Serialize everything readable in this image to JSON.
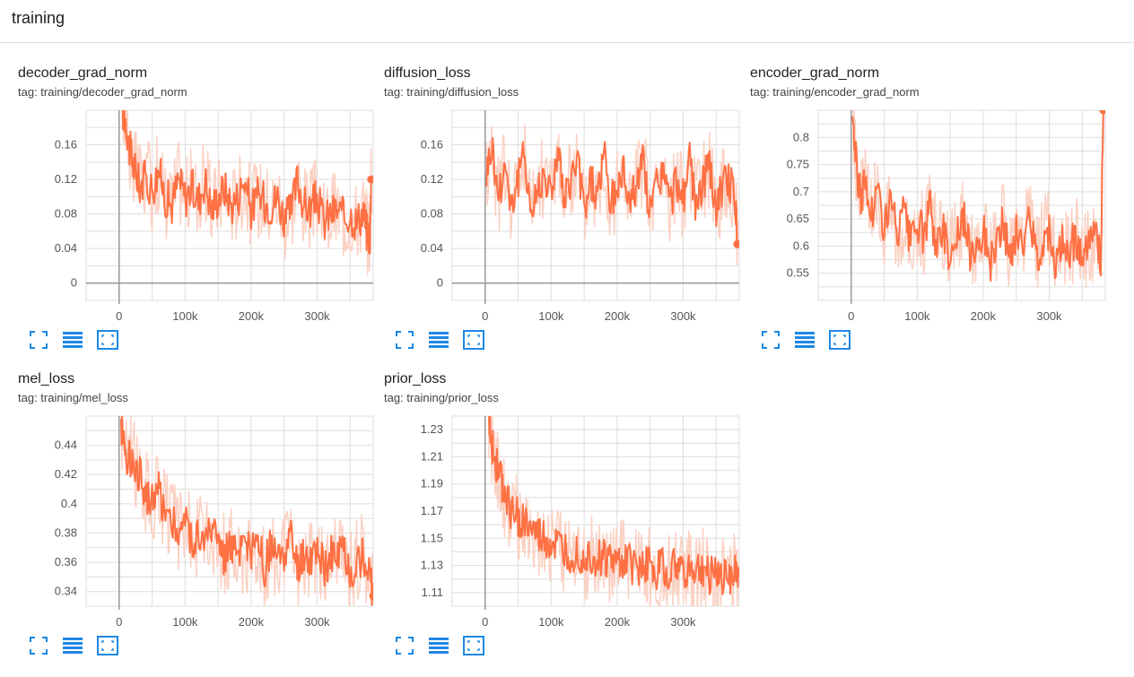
{
  "header": {
    "title": "training"
  },
  "colors": {
    "series": "#ff7043",
    "series_raw": "#fbd1c3",
    "grid": "#dddddd",
    "axis": "#999999",
    "icon": "#1e88e5"
  },
  "icons": [
    "fullscreen-icon",
    "data-table-icon",
    "fit-domain-icon"
  ],
  "chart_data": [
    {
      "type": "line",
      "title": "decoder_grad_norm",
      "tag": "tag: training/decoder_grad_norm",
      "xticks": [
        0,
        100000,
        200000,
        300000
      ],
      "xtick_labels": [
        "0",
        "100k",
        "200k",
        "300k"
      ],
      "yticks": [
        0,
        0.04,
        0.08,
        0.12,
        0.16
      ],
      "ytick_labels": [
        "0",
        "0.04",
        "0.08",
        "0.12",
        "0.16"
      ],
      "xlim": [
        -50000,
        385000
      ],
      "ylim": [
        -0.02,
        0.2
      ],
      "grid": true,
      "series": [
        {
          "x": [
            5000,
            10000,
            15000,
            20000,
            25000,
            30000,
            40000,
            50000,
            60000,
            70000,
            80000,
            90000,
            100000,
            110000,
            120000,
            130000,
            140000,
            150000,
            160000,
            170000,
            180000,
            190000,
            200000,
            210000,
            220000,
            230000,
            240000,
            250000,
            260000,
            270000,
            280000,
            290000,
            300000,
            310000,
            320000,
            330000,
            340000,
            350000,
            360000,
            370000,
            375000,
            380000,
            382000
          ],
          "y": [
            0.2,
            0.19,
            0.16,
            0.14,
            0.13,
            0.115,
            0.12,
            0.11,
            0.13,
            0.1,
            0.09,
            0.12,
            0.1,
            0.11,
            0.095,
            0.12,
            0.085,
            0.1,
            0.11,
            0.09,
            0.1,
            0.12,
            0.085,
            0.1,
            0.095,
            0.09,
            0.1,
            0.075,
            0.08,
            0.12,
            0.09,
            0.085,
            0.1,
            0.07,
            0.08,
            0.085,
            0.075,
            0.08,
            0.07,
            0.085,
            0.06,
            0.055,
            0.12
          ]
        }
      ]
    },
    {
      "type": "line",
      "title": "diffusion_loss",
      "tag": "tag: training/diffusion_loss",
      "xticks": [
        0,
        100000,
        200000,
        300000
      ],
      "xtick_labels": [
        "0",
        "100k",
        "200k",
        "300k"
      ],
      "yticks": [
        0,
        0.04,
        0.08,
        0.12,
        0.16
      ],
      "ytick_labels": [
        "0",
        "0.04",
        "0.08",
        "0.12",
        "0.16"
      ],
      "xlim": [
        -50000,
        385000
      ],
      "ylim": [
        -0.02,
        0.2
      ],
      "grid": true,
      "series": [
        {
          "x": [
            2000,
            10000,
            20000,
            30000,
            40000,
            50000,
            60000,
            70000,
            80000,
            90000,
            100000,
            110000,
            120000,
            130000,
            140000,
            150000,
            160000,
            170000,
            180000,
            190000,
            200000,
            210000,
            220000,
            230000,
            240000,
            250000,
            260000,
            270000,
            280000,
            290000,
            300000,
            310000,
            320000,
            330000,
            340000,
            350000,
            360000,
            370000,
            380000,
            382000
          ],
          "y": [
            0.13,
            0.16,
            0.1,
            0.14,
            0.09,
            0.12,
            0.15,
            0.08,
            0.11,
            0.13,
            0.1,
            0.16,
            0.09,
            0.12,
            0.14,
            0.085,
            0.12,
            0.1,
            0.15,
            0.09,
            0.11,
            0.13,
            0.095,
            0.12,
            0.14,
            0.08,
            0.115,
            0.13,
            0.09,
            0.12,
            0.1,
            0.14,
            0.085,
            0.12,
            0.13,
            0.09,
            0.11,
            0.12,
            0.09,
            0.045
          ]
        }
      ]
    },
    {
      "type": "line",
      "title": "encoder_grad_norm",
      "tag": "tag: training/encoder_grad_norm",
      "xticks": [
        0,
        100000,
        200000,
        300000
      ],
      "xtick_labels": [
        "0",
        "100k",
        "200k",
        "300k"
      ],
      "yticks": [
        0.55,
        0.6,
        0.65,
        0.7,
        0.75,
        0.8
      ],
      "ytick_labels": [
        "0.55",
        "0.6",
        "0.65",
        "0.7",
        "0.75",
        "0.8"
      ],
      "xlim": [
        -50000,
        385000
      ],
      "ylim": [
        0.5,
        0.85
      ],
      "grid": true,
      "series": [
        {
          "x": [
            2000,
            8000,
            15000,
            20000,
            30000,
            40000,
            50000,
            60000,
            70000,
            80000,
            90000,
            100000,
            110000,
            120000,
            130000,
            140000,
            150000,
            160000,
            170000,
            180000,
            190000,
            200000,
            210000,
            220000,
            230000,
            240000,
            250000,
            260000,
            270000,
            280000,
            290000,
            300000,
            310000,
            320000,
            330000,
            340000,
            350000,
            360000,
            370000,
            378000,
            382000
          ],
          "y": [
            0.85,
            0.74,
            0.69,
            0.72,
            0.66,
            0.7,
            0.64,
            0.68,
            0.62,
            0.66,
            0.6,
            0.64,
            0.62,
            0.67,
            0.6,
            0.63,
            0.58,
            0.62,
            0.65,
            0.59,
            0.61,
            0.63,
            0.57,
            0.6,
            0.64,
            0.58,
            0.62,
            0.6,
            0.66,
            0.58,
            0.61,
            0.63,
            0.57,
            0.6,
            0.59,
            0.62,
            0.58,
            0.6,
            0.62,
            0.57,
            0.85
          ]
        }
      ]
    },
    {
      "type": "line",
      "title": "mel_loss",
      "tag": "tag: training/mel_loss",
      "xticks": [
        0,
        100000,
        200000,
        300000
      ],
      "xtick_labels": [
        "0",
        "100k",
        "200k",
        "300k"
      ],
      "yticks": [
        0.34,
        0.36,
        0.38,
        0.4,
        0.42,
        0.44
      ],
      "ytick_labels": [
        "0.34",
        "0.36",
        "0.38",
        "0.4",
        "0.42",
        "0.44"
      ],
      "xlim": [
        -50000,
        385000
      ],
      "ylim": [
        0.33,
        0.46
      ],
      "grid": true,
      "series": [
        {
          "x": [
            3000,
            8000,
            15000,
            20000,
            30000,
            40000,
            50000,
            60000,
            70000,
            80000,
            90000,
            100000,
            110000,
            120000,
            130000,
            140000,
            150000,
            160000,
            170000,
            180000,
            190000,
            200000,
            210000,
            220000,
            230000,
            240000,
            250000,
            260000,
            270000,
            280000,
            290000,
            300000,
            310000,
            320000,
            330000,
            340000,
            350000,
            360000,
            370000,
            380000,
            385000
          ],
          "y": [
            0.455,
            0.44,
            0.43,
            0.435,
            0.42,
            0.41,
            0.4,
            0.41,
            0.395,
            0.39,
            0.38,
            0.39,
            0.375,
            0.38,
            0.37,
            0.385,
            0.37,
            0.365,
            0.375,
            0.36,
            0.37,
            0.365,
            0.375,
            0.355,
            0.37,
            0.36,
            0.365,
            0.375,
            0.355,
            0.365,
            0.36,
            0.37,
            0.355,
            0.365,
            0.36,
            0.37,
            0.35,
            0.36,
            0.365,
            0.355,
            0.337
          ]
        }
      ]
    },
    {
      "type": "line",
      "title": "prior_loss",
      "tag": "tag: training/prior_loss",
      "xticks": [
        0,
        100000,
        200000,
        300000
      ],
      "xtick_labels": [
        "0",
        "100k",
        "200k",
        "300k"
      ],
      "yticks": [
        1.11,
        1.13,
        1.15,
        1.17,
        1.19,
        1.21,
        1.23
      ],
      "ytick_labels": [
        "1.11",
        "1.13",
        "1.15",
        "1.17",
        "1.19",
        "1.21",
        "1.23"
      ],
      "xlim": [
        -50000,
        385000
      ],
      "ylim": [
        1.1,
        1.24
      ],
      "grid": true,
      "series": [
        {
          "x": [
            5000,
            10000,
            15000,
            20000,
            25000,
            30000,
            40000,
            50000,
            60000,
            70000,
            80000,
            90000,
            100000,
            110000,
            120000,
            130000,
            140000,
            150000,
            160000,
            170000,
            180000,
            190000,
            200000,
            210000,
            220000,
            230000,
            240000,
            250000,
            260000,
            270000,
            280000,
            290000,
            300000,
            310000,
            320000,
            330000,
            340000,
            350000,
            360000,
            370000,
            380000,
            385000
          ],
          "y": [
            1.24,
            1.22,
            1.21,
            1.2,
            1.19,
            1.18,
            1.17,
            1.165,
            1.16,
            1.155,
            1.15,
            1.148,
            1.145,
            1.142,
            1.14,
            1.138,
            1.14,
            1.135,
            1.138,
            1.133,
            1.135,
            1.132,
            1.13,
            1.134,
            1.13,
            1.128,
            1.131,
            1.129,
            1.127,
            1.13,
            1.126,
            1.128,
            1.125,
            1.127,
            1.124,
            1.126,
            1.123,
            1.125,
            1.122,
            1.124,
            1.123,
            1.125
          ]
        }
      ]
    }
  ]
}
